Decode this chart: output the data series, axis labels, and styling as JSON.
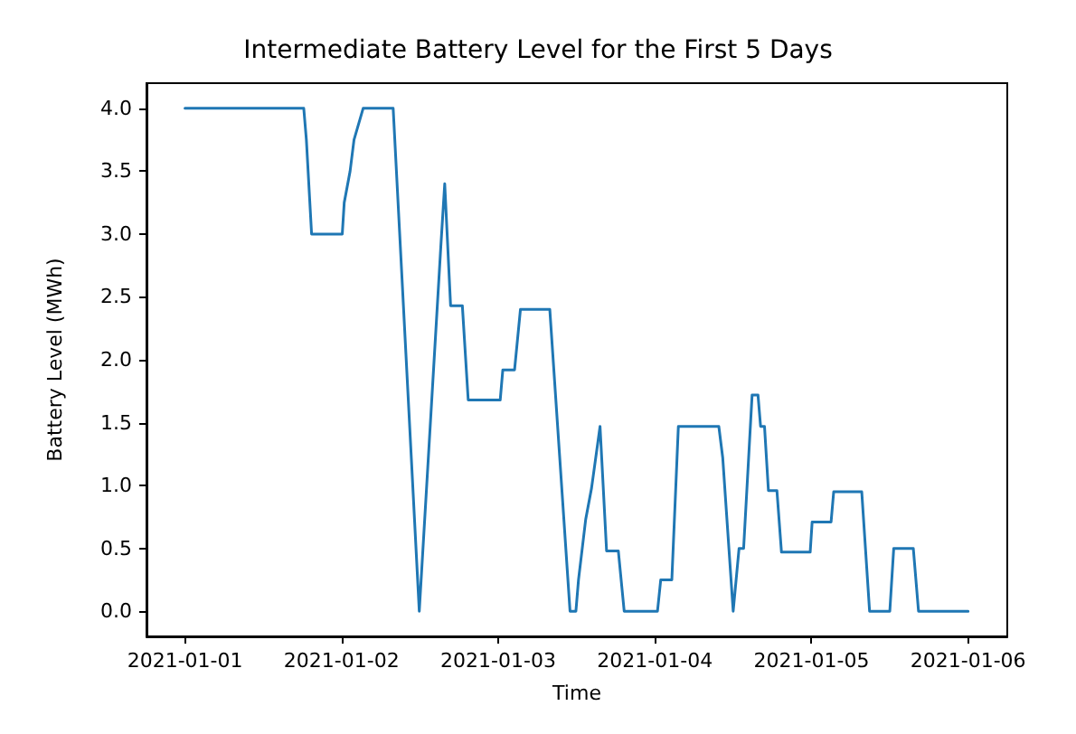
{
  "chart_data": {
    "type": "line",
    "title": "Intermediate Battery Level for the First 5 Days",
    "xlabel": "Time",
    "ylabel": "Battery Level (MWh)",
    "x": [
      "2021-01-01T00:00",
      "2021-01-01T18:12",
      "2021-01-01T18:36",
      "2021-01-01T19:24",
      "2021-01-02T00:06",
      "2021-01-02T00:24",
      "2021-01-02T01:18",
      "2021-01-02T01:54",
      "2021-01-02T03:18",
      "2021-01-02T07:54",
      "2021-01-02T11:54",
      "2021-01-02T15:12",
      "2021-01-02T15:48",
      "2021-01-02T16:42",
      "2021-01-02T18:30",
      "2021-01-02T19:24",
      "2021-01-03T00:18",
      "2021-01-03T00:42",
      "2021-01-03T02:30",
      "2021-01-03T03:24",
      "2021-01-03T07:54",
      "2021-01-03T11:00",
      "2021-01-03T11:54",
      "2021-01-03T12:18",
      "2021-01-03T13:24",
      "2021-01-03T14:18",
      "2021-01-03T15:36",
      "2021-01-03T16:36",
      "2021-01-03T18:24",
      "2021-01-03T19:18",
      "2021-01-04T00:24",
      "2021-01-04T00:54",
      "2021-01-04T02:36",
      "2021-01-04T03:36",
      "2021-01-04T09:48",
      "2021-01-04T10:24",
      "2021-01-04T12:00",
      "2021-01-04T12:54",
      "2021-01-04T13:36",
      "2021-01-04T14:54",
      "2021-01-04T15:48",
      "2021-01-04T16:12",
      "2021-01-04T16:48",
      "2021-01-04T17:24",
      "2021-01-04T18:42",
      "2021-01-04T19:24",
      "2021-01-04T23:48",
      "2021-01-05T00:06",
      "2021-01-05T03:00",
      "2021-01-05T03:24",
      "2021-01-05T07:42",
      "2021-01-05T08:54",
      "2021-01-05T12:00",
      "2021-01-05T12:36",
      "2021-01-05T15:36",
      "2021-01-05T16:24",
      "2021-01-06T00:00"
    ],
    "series": [
      {
        "color": "#1f77b4",
        "values": [
          4.0,
          4.0,
          3.75,
          3.0,
          3.0,
          3.25,
          3.5,
          3.75,
          4.0,
          4.0,
          0,
          2.9,
          3.4,
          2.43,
          2.43,
          1.68,
          1.68,
          1.92,
          1.92,
          2.4,
          2.4,
          0,
          0,
          0.25,
          0.73,
          0.98,
          1.47,
          0.48,
          0.48,
          0,
          0,
          0.25,
          0.25,
          1.47,
          1.47,
          1.22,
          0,
          0.5,
          0.5,
          1.72,
          1.72,
          1.47,
          1.47,
          0.96,
          0.96,
          0.47,
          0.47,
          0.71,
          0.71,
          0.95,
          0.95,
          0,
          0,
          0.5,
          0.5,
          0,
          0
        ]
      }
    ],
    "xlim": [
      "2020-12-31T18:06",
      "2021-01-06T06:00"
    ],
    "xticks": [
      "2021-01-01",
      "2021-01-02",
      "2021-01-03",
      "2021-01-04",
      "2021-01-05",
      "2021-01-06"
    ],
    "ylim": [
      -0.2,
      4.2
    ],
    "yticks": [
      {
        "value": 0,
        "label": "0.0"
      },
      0.5,
      {
        "value": 1,
        "label": "1.0"
      },
      1.5,
      {
        "value": 2,
        "label": "2.0"
      },
      2.5,
      {
        "value": 3,
        "label": "3.0"
      },
      3.5,
      {
        "value": 4,
        "label": "4.0"
      }
    ],
    "marker": "none",
    "line_style": "solid"
  }
}
